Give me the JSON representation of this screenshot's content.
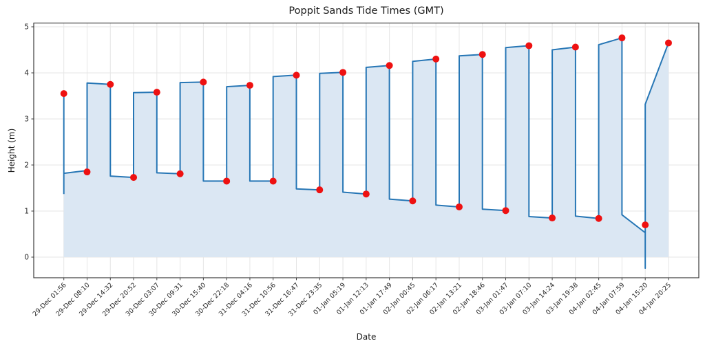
{
  "chart_data": {
    "type": "line",
    "title": "Poppit Sands Tide Times (GMT)",
    "xlabel": "Date",
    "ylabel": "Height (m)",
    "categories": [
      "29-Dec 01:56",
      "29-Dec 08:10",
      "29-Dec 14:32",
      "29-Dec 20:52",
      "30-Dec 03:07",
      "30-Dec 09:31",
      "30-Dec 15:40",
      "30-Dec 22:18",
      "31-Dec 04:16",
      "31-Dec 10:56",
      "31-Dec 16:47",
      "31-Dec 23:35",
      "01-Jan 05:19",
      "01-Jan 12:13",
      "01-Jan 17:49",
      "02-Jan 00:45",
      "02-Jan 06:17",
      "02-Jan 13:21",
      "02-Jan 18:46",
      "03-Jan 01:47",
      "03-Jan 07:10",
      "03-Jan 14:24",
      "03-Jan 19:38",
      "04-Jan 02:45",
      "04-Jan 07:59",
      "04-Jan 15:20",
      "04-Jan 20:25"
    ],
    "values": [
      3.55,
      1.85,
      3.75,
      1.73,
      3.58,
      1.81,
      3.8,
      1.65,
      3.73,
      1.65,
      3.95,
      1.46,
      4.01,
      1.37,
      4.16,
      1.22,
      4.3,
      1.09,
      4.4,
      1.01,
      4.59,
      0.85,
      4.56,
      0.84,
      4.76,
      0.7,
      4.65
    ],
    "tide_types": [
      "high",
      "low",
      "high",
      "low",
      "high",
      "low",
      "high",
      "low",
      "high",
      "low",
      "high",
      "low",
      "high",
      "low",
      "high",
      "low",
      "high",
      "low",
      "high",
      "low",
      "high",
      "low",
      "high",
      "low",
      "high",
      "low",
      "high"
    ],
    "line_path": [
      [
        0,
        1.37
      ],
      [
        0,
        3.55
      ],
      [
        0,
        1.82
      ],
      [
        1,
        1.88
      ],
      [
        1,
        3.78
      ],
      [
        2,
        3.75
      ],
      [
        2,
        1.76
      ],
      [
        3,
        1.73
      ],
      [
        3,
        3.57
      ],
      [
        4,
        3.58
      ],
      [
        4,
        1.83
      ],
      [
        5,
        1.81
      ],
      [
        5,
        3.79
      ],
      [
        6,
        3.8
      ],
      [
        6,
        1.65
      ],
      [
        7,
        1.65
      ],
      [
        7,
        3.7
      ],
      [
        8,
        3.73
      ],
      [
        8,
        1.65
      ],
      [
        9,
        1.65
      ],
      [
        9,
        3.92
      ],
      [
        10,
        3.95
      ],
      [
        10,
        1.48
      ],
      [
        11,
        1.46
      ],
      [
        11,
        3.99
      ],
      [
        12,
        4.01
      ],
      [
        12,
        1.41
      ],
      [
        13,
        1.37
      ],
      [
        13,
        4.12
      ],
      [
        14,
        4.16
      ],
      [
        14,
        1.26
      ],
      [
        15,
        1.22
      ],
      [
        15,
        4.25
      ],
      [
        16,
        4.3
      ],
      [
        16,
        1.13
      ],
      [
        17,
        1.09
      ],
      [
        17,
        4.37
      ],
      [
        18,
        4.4
      ],
      [
        18,
        1.04
      ],
      [
        19,
        1.01
      ],
      [
        19,
        4.55
      ],
      [
        20,
        4.59
      ],
      [
        20,
        0.88
      ],
      [
        21,
        0.85
      ],
      [
        21,
        4.5
      ],
      [
        22,
        4.56
      ],
      [
        22,
        0.89
      ],
      [
        23,
        0.84
      ],
      [
        23,
        4.61
      ],
      [
        24,
        4.76
      ],
      [
        24,
        0.92
      ],
      [
        25,
        0.53
      ],
      [
        25,
        -0.24
      ],
      [
        25,
        3.32
      ],
      [
        26,
        4.65
      ]
    ],
    "yticks": [
      0,
      1,
      2,
      3,
      4,
      5
    ],
    "ylim": [
      -0.45,
      5.08
    ],
    "grid": true,
    "legend_position": "none",
    "line_color": "#2676b5",
    "fill_color": "#dbe7f3",
    "marker_color": "#ee1111",
    "grid_color": "#e5e5e5",
    "spine_color": "#3c3c3c",
    "tick_text_color": "#262626"
  }
}
